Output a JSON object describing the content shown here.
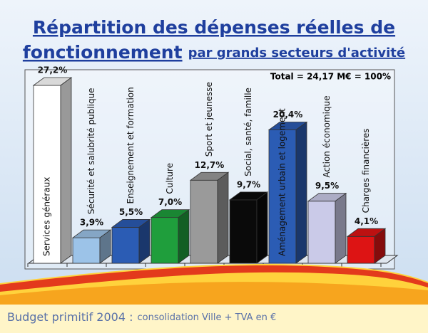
{
  "chart_data": {
    "type": "bar3d",
    "title_line1": "Répartition des dépenses réelles de",
    "title_main": "fonctionnement",
    "title_rest": "par grands secteurs d'activité",
    "annotation": "Total = 24,17 M€ = 100%",
    "footer_main": "Budget primitif 2004 :",
    "footer_rest": "consolidation Ville + TVA en €",
    "categories": [
      "Services généraux",
      "Sécurité et salubrité publique",
      "Enseignement et formation",
      "Culture",
      "Sport et jeunesse",
      "Social, santé, famille",
      "Aménagement urbain et logement",
      "Action économique",
      "Charges financières"
    ],
    "values": [
      27.2,
      3.9,
      5.5,
      7.0,
      12.7,
      9.7,
      20.4,
      9.5,
      4.1
    ],
    "value_labels": [
      "27,2%",
      "3,9%",
      "5,5%",
      "7,0%",
      "12,7%",
      "9,7%",
      "20,4%",
      "9,5%",
      "4,1%"
    ],
    "colors": [
      "#ffffff",
      "#9cc3e8",
      "#2b5cb4",
      "#1f9e3c",
      "#9a9a9a",
      "#0a0a0a",
      "#2b5cb4",
      "#cacae8",
      "#dd1414"
    ]
  }
}
